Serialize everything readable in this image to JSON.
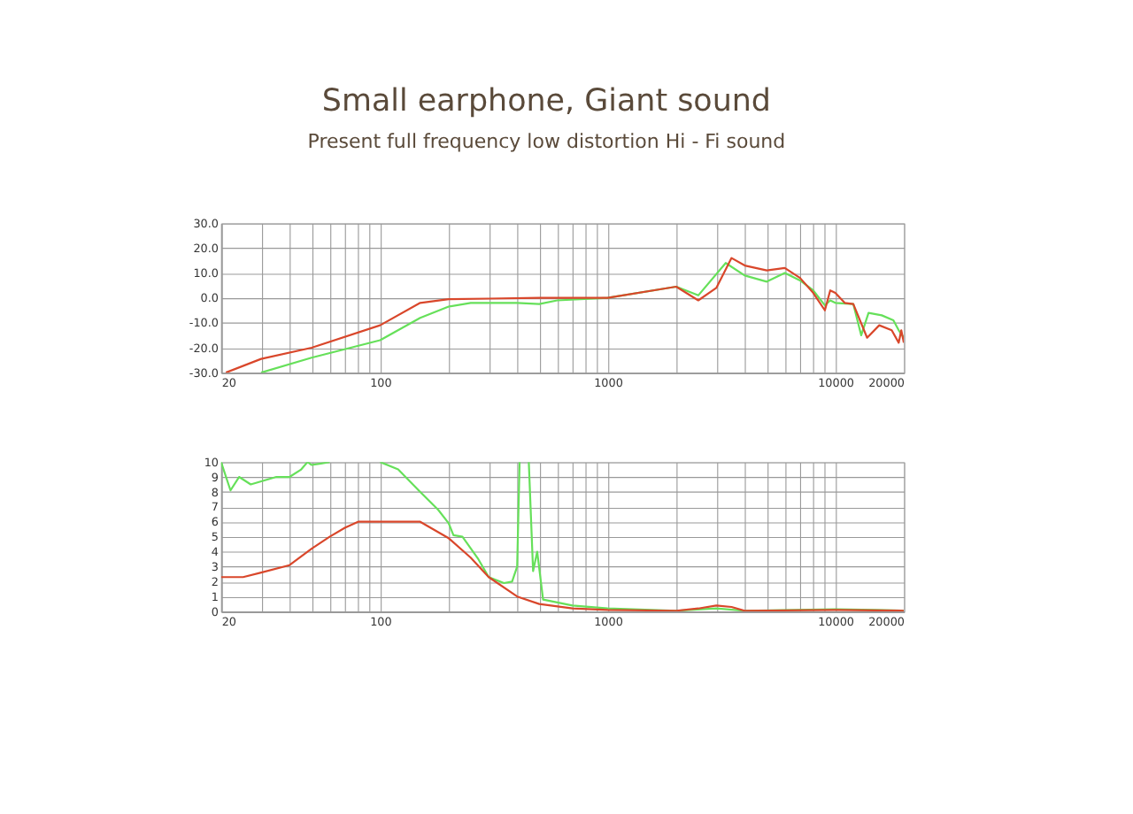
{
  "chart_data": [
    {
      "type": "line",
      "title": "Small earphone, Giant sound",
      "subtitle": "Present full frequency low distortion Hi - Fi sound",
      "log": "x",
      "grid": true,
      "xlim": [
        20,
        20000
      ],
      "ylim": [
        -30,
        30
      ],
      "xticks": [
        20,
        {
          "value": 30,
          "label": null
        },
        {
          "value": 40,
          "label": null
        },
        {
          "value": 50,
          "label": null
        },
        {
          "value": 60,
          "label": null
        },
        {
          "value": 70,
          "label": null
        },
        {
          "value": 80,
          "label": null
        },
        {
          "value": 90,
          "label": null
        },
        100,
        {
          "value": 200,
          "label": null
        },
        {
          "value": 300,
          "label": null
        },
        {
          "value": 400,
          "label": null
        },
        {
          "value": 500,
          "label": null
        },
        {
          "value": 600,
          "label": null
        },
        {
          "value": 700,
          "label": null
        },
        {
          "value": 800,
          "label": null
        },
        {
          "value": 900,
          "label": null
        },
        1000,
        {
          "value": 2000,
          "label": null
        },
        {
          "value": 3000,
          "label": null
        },
        {
          "value": 4000,
          "label": null
        },
        {
          "value": 5000,
          "label": null
        },
        {
          "value": 6000,
          "label": null
        },
        {
          "value": 7000,
          "label": null
        },
        {
          "value": 8000,
          "label": null
        },
        {
          "value": 9000,
          "label": null
        },
        10000,
        20000
      ],
      "yticks": [
        {
          "value": -30,
          "label": "-30.0"
        },
        {
          "value": -20,
          "label": "-20.0"
        },
        {
          "value": -10,
          "label": "-10.0"
        },
        {
          "value": 0,
          "label": "0.0"
        },
        {
          "value": 10,
          "label": "10.0"
        },
        {
          "value": 20,
          "label": "20.0"
        },
        {
          "value": 30,
          "label": "30.0"
        }
      ],
      "series": [
        {
          "color": "#66e05a",
          "x": [
            30,
            50,
            100,
            150,
            200,
            250,
            400,
            500,
            600,
            1000,
            2000,
            2500,
            3300,
            4000,
            5000,
            6000,
            7000,
            8000,
            9000,
            9500,
            10000,
            12000,
            13000,
            14000,
            16000,
            18000,
            19000,
            20000
          ],
          "values": [
            -30,
            -24,
            -17,
            -8,
            -3.5,
            -2,
            -2,
            -2.5,
            -1,
            0,
            4.5,
            1,
            14,
            9,
            6.5,
            10,
            7,
            3,
            -3,
            -1,
            -2,
            -2.5,
            -15,
            -6,
            -7,
            -9,
            -13,
            -16
          ]
        },
        {
          "color": "#d9472b",
          "x": [
            21,
            30,
            50,
            100,
            150,
            200,
            300,
            500,
            1000,
            2000,
            2500,
            3000,
            3500,
            4000,
            5000,
            6000,
            7000,
            8000,
            9000,
            9500,
            10000,
            11000,
            12000,
            13800,
            15600,
            17700,
            19000,
            19500,
            20000
          ],
          "values": [
            -30,
            -24.5,
            -20,
            -11,
            -2,
            -0.5,
            -0.3,
            0,
            0,
            4.5,
            -1,
            4,
            16,
            13,
            11,
            12,
            8,
            2,
            -5,
            3,
            2,
            -2,
            -2.5,
            -16,
            -11,
            -13,
            -18,
            -13,
            -18
          ]
        }
      ]
    },
    {
      "type": "line",
      "log": "x",
      "grid": true,
      "xlim": [
        20,
        20000
      ],
      "ylim": [
        0,
        10
      ],
      "xticks": [
        20,
        {
          "value": 30,
          "label": null
        },
        {
          "value": 40,
          "label": null
        },
        {
          "value": 50,
          "label": null
        },
        {
          "value": 60,
          "label": null
        },
        {
          "value": 70,
          "label": null
        },
        {
          "value": 80,
          "label": null
        },
        {
          "value": 90,
          "label": null
        },
        100,
        {
          "value": 200,
          "label": null
        },
        {
          "value": 300,
          "label": null
        },
        {
          "value": 400,
          "label": null
        },
        {
          "value": 500,
          "label": null
        },
        {
          "value": 600,
          "label": null
        },
        {
          "value": 700,
          "label": null
        },
        {
          "value": 800,
          "label": null
        },
        {
          "value": 900,
          "label": null
        },
        1000,
        {
          "value": 2000,
          "label": null
        },
        {
          "value": 3000,
          "label": null
        },
        {
          "value": 4000,
          "label": null
        },
        {
          "value": 5000,
          "label": null
        },
        {
          "value": 6000,
          "label": null
        },
        {
          "value": 7000,
          "label": null
        },
        {
          "value": 8000,
          "label": null
        },
        {
          "value": 9000,
          "label": null
        },
        10000,
        20000
      ],
      "yticks": [
        0,
        1,
        2,
        3,
        4,
        5,
        6,
        7,
        8,
        9,
        10
      ],
      "series": [
        {
          "color": "#66e05a",
          "x": [
            20,
            22,
            24,
            27,
            35,
            40,
            45,
            48,
            50,
            55,
            60,
            80,
            100,
            120,
            150,
            180,
            200,
            210,
            230,
            270,
            300,
            350,
            380,
            400,
            410,
            430,
            450,
            470,
            490,
            520,
            700,
            1000,
            2000,
            3000,
            4000,
            10000,
            15000,
            20000
          ],
          "values": [
            10,
            8.1,
            9,
            8.5,
            9,
            9,
            9.5,
            10,
            9.8,
            9.9,
            10,
            null,
            10,
            9.5,
            8,
            6.8,
            5.9,
            5.1,
            5,
            3.5,
            2.3,
            1.9,
            2,
            3,
            10,
            null,
            10,
            2.7,
            4,
            0.8,
            0.4,
            0.2,
            0.05,
            0.2,
            0.05,
            0.15,
            0.1,
            0.05
          ]
        },
        {
          "color": "#d9472b",
          "x": [
            20,
            25,
            30,
            40,
            50,
            60,
            70,
            80,
            100,
            150,
            200,
            250,
            300,
            400,
            500,
            700,
            1000,
            2000,
            2500,
            3000,
            3500,
            4000,
            10000,
            20000
          ],
          "values": [
            2.3,
            2.3,
            2.6,
            3.1,
            4.2,
            5,
            5.6,
            6,
            6,
            6,
            4.9,
            3.6,
            2.3,
            1,
            0.5,
            0.2,
            0.1,
            0.05,
            0.2,
            0.4,
            0.3,
            0.05,
            0.1,
            0.05
          ]
        }
      ]
    }
  ]
}
